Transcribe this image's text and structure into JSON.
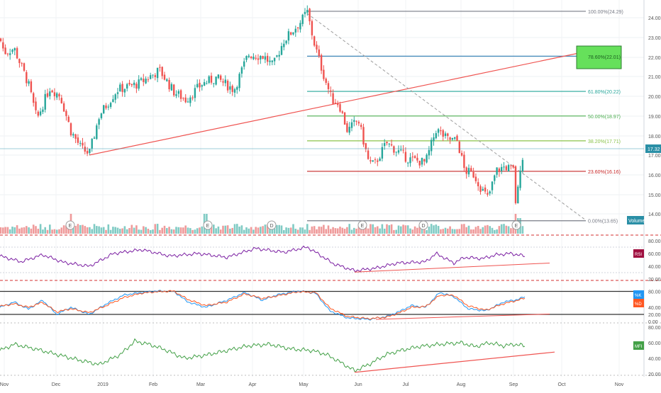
{
  "colors": {
    "up": "#26a69a",
    "down": "#ef5350",
    "fib_gray": "#787b86",
    "fib_blue": "#2a7ab0",
    "fib_teal": "#26a69a",
    "fib_green": "#4caf50",
    "fib_lime": "#8bc34a",
    "fib_red": "#c62828",
    "trend_red": "#ef5350",
    "rsi_line": "#7b1fa2",
    "stoch_k": "#2196f3",
    "stoch_d": "#ff5722",
    "mfi_line": "#43a047",
    "price_badge": "#2a8fa6",
    "green_box": "#66e05b",
    "separator": "#d32f2f"
  },
  "price_axis": {
    "ticks": [
      "24.00",
      "23.00",
      "22.00",
      "21.00",
      "20.00",
      "19.00",
      "18.00",
      "17.00",
      "16.00",
      "15.00",
      "14.00"
    ],
    "current_price": "17.32",
    "volume_label": "Volume"
  },
  "fib_levels": [
    {
      "label": "100.00%(24.29)",
      "price": 24.29,
      "color_key": "fib_gray"
    },
    {
      "label": "78.60%(22.01)",
      "price": 22.01,
      "color_key": "fib_blue"
    },
    {
      "label": "61.80%(20.22)",
      "price": 20.22,
      "color_key": "fib_teal"
    },
    {
      "label": "50.00%(18.97)",
      "price": 18.97,
      "color_key": "fib_green"
    },
    {
      "label": "38.20%(17.71)",
      "price": 17.71,
      "color_key": "fib_lime"
    },
    {
      "label": "23.60%(16.16)",
      "price": 16.16,
      "color_key": "fib_red"
    },
    {
      "label": "0.00%(13.65)",
      "price": 13.65,
      "color_key": "fib_gray"
    }
  ],
  "event_markers": [
    "E",
    "E",
    "D",
    "E",
    "D",
    "E"
  ],
  "indicators": {
    "rsi": {
      "badge": "RSI",
      "ticks": [
        "80.00",
        "60.00",
        "40.00",
        "20.00"
      ]
    },
    "stoch": {
      "badge_k": "%K",
      "badge_d": "%D",
      "ticks": [
        "80.00",
        "40.00",
        "20.00",
        "0.00"
      ]
    },
    "mfi": {
      "badge": "MFI",
      "ticks": [
        "80.00",
        "60.00",
        "40.00",
        "20.00"
      ]
    }
  },
  "time_axis": [
    "Nov",
    "Dec",
    "2019",
    "Feb",
    "Mar",
    "Apr",
    "May",
    "Jun",
    "Jul",
    "Aug",
    "Sep",
    "Oct",
    "Nov"
  ],
  "chart_data": {
    "type": "candlestick",
    "title": "",
    "x_range": [
      "2018-11",
      "2019-11"
    ],
    "ylim": [
      13.4,
      24.7
    ],
    "price_path": [
      [
        0,
        22.9
      ],
      [
        6,
        22.2
      ],
      [
        20,
        22.4
      ],
      [
        40,
        20.6
      ],
      [
        52,
        18.8
      ],
      [
        70,
        20.4
      ],
      [
        85,
        20.0
      ],
      [
        100,
        18.2
      ],
      [
        115,
        17.3
      ],
      [
        126,
        17.05
      ],
      [
        140,
        19.0
      ],
      [
        165,
        20.3
      ],
      [
        195,
        20.6
      ],
      [
        225,
        21.3
      ],
      [
        245,
        20.2
      ],
      [
        262,
        19.8
      ],
      [
        285,
        20.6
      ],
      [
        305,
        20.9
      ],
      [
        330,
        20.3
      ],
      [
        350,
        22.1
      ],
      [
        372,
        22.0
      ],
      [
        385,
        21.5
      ],
      [
        400,
        22.8
      ],
      [
        425,
        23.8
      ],
      [
        433,
        24.29
      ],
      [
        442,
        22.8
      ],
      [
        455,
        21.2
      ],
      [
        468,
        19.8
      ],
      [
        478,
        19.6
      ],
      [
        490,
        18.2
      ],
      [
        505,
        18.8
      ],
      [
        520,
        16.6
      ],
      [
        528,
        16.5
      ],
      [
        545,
        17.6
      ],
      [
        560,
        17.2
      ],
      [
        575,
        16.8
      ],
      [
        600,
        16.6
      ],
      [
        615,
        18.3
      ],
      [
        630,
        17.8
      ],
      [
        645,
        17.7
      ],
      [
        655,
        16.2
      ],
      [
        668,
        16.0
      ],
      [
        680,
        15.2
      ],
      [
        688,
        14.8
      ],
      [
        700,
        16.2
      ],
      [
        712,
        16.4
      ],
      [
        725,
        16.2
      ],
      [
        728,
        13.85
      ],
      [
        732,
        16.2
      ],
      [
        740,
        17.32
      ]
    ],
    "trendline": {
      "from": [
        "2018-12",
        17.0
      ],
      "to": [
        "2019-10",
        22.5
      ]
    },
    "target_zone": {
      "label": "78.60%(22.01)",
      "low": 21.5,
      "high": 22.6
    },
    "indicators": [
      {
        "name": "RSI",
        "ylim": [
          20,
          80
        ],
        "bands": [
          70,
          30
        ],
        "path": [
          [
            0,
            56
          ],
          [
            30,
            47
          ],
          [
            60,
            58
          ],
          [
            90,
            46
          ],
          [
            126,
            40
          ],
          [
            160,
            60
          ],
          [
            200,
            66
          ],
          [
            240,
            56
          ],
          [
            280,
            60
          ],
          [
            320,
            54
          ],
          [
            360,
            68
          ],
          [
            400,
            62
          ],
          [
            433,
            70
          ],
          [
            445,
            62
          ],
          [
            470,
            44
          ],
          [
            500,
            33
          ],
          [
            530,
            37
          ],
          [
            560,
            45
          ],
          [
            600,
            47
          ],
          [
            615,
            60
          ],
          [
            640,
            45
          ],
          [
            655,
            54
          ],
          [
            680,
            52
          ],
          [
            700,
            58
          ],
          [
            720,
            60
          ],
          [
            740,
            56
          ]
        ]
      },
      {
        "name": "Stoch",
        "ylim": [
          0,
          100
        ],
        "bands": [
          80,
          20
        ],
        "k_path": [
          [
            0,
            40
          ],
          [
            20,
            55
          ],
          [
            40,
            35
          ],
          [
            60,
            60
          ],
          [
            80,
            20
          ],
          [
            100,
            40
          ],
          [
            126,
            20
          ],
          [
            150,
            50
          ],
          [
            175,
            75
          ],
          [
            200,
            82
          ],
          [
            220,
            86
          ],
          [
            245,
            85
          ],
          [
            265,
            55
          ],
          [
            290,
            40
          ],
          [
            320,
            60
          ],
          [
            345,
            82
          ],
          [
            370,
            60
          ],
          [
            390,
            75
          ],
          [
            420,
            86
          ],
          [
            445,
            80
          ],
          [
            465,
            30
          ],
          [
            490,
            10
          ],
          [
            520,
            6
          ],
          [
            545,
            14
          ],
          [
            565,
            30
          ],
          [
            580,
            45
          ],
          [
            600,
            40
          ],
          [
            620,
            82
          ],
          [
            640,
            70
          ],
          [
            660,
            36
          ],
          [
            685,
            30
          ],
          [
            710,
            55
          ],
          [
            730,
            62
          ],
          [
            740,
            70
          ]
        ],
        "d_path": [
          [
            0,
            43
          ],
          [
            20,
            50
          ],
          [
            40,
            40
          ],
          [
            60,
            54
          ],
          [
            80,
            27
          ],
          [
            100,
            36
          ],
          [
            126,
            25
          ],
          [
            150,
            45
          ],
          [
            175,
            68
          ],
          [
            200,
            80
          ],
          [
            220,
            84
          ],
          [
            245,
            86
          ],
          [
            265,
            62
          ],
          [
            290,
            45
          ],
          [
            320,
            55
          ],
          [
            345,
            78
          ],
          [
            370,
            65
          ],
          [
            390,
            72
          ],
          [
            420,
            84
          ],
          [
            445,
            82
          ],
          [
            465,
            38
          ],
          [
            490,
            14
          ],
          [
            520,
            8
          ],
          [
            545,
            12
          ],
          [
            565,
            26
          ],
          [
            580,
            40
          ],
          [
            600,
            42
          ],
          [
            620,
            74
          ],
          [
            640,
            74
          ],
          [
            660,
            44
          ],
          [
            685,
            32
          ],
          [
            710,
            50
          ],
          [
            730,
            60
          ],
          [
            740,
            66
          ]
        ]
      },
      {
        "name": "MFI",
        "ylim": [
          20,
          80
        ],
        "bands": [],
        "path": [
          [
            0,
            50
          ],
          [
            20,
            58
          ],
          [
            50,
            52
          ],
          [
            80,
            45
          ],
          [
            110,
            38
          ],
          [
            140,
            32
          ],
          [
            170,
            45
          ],
          [
            190,
            62
          ],
          [
            210,
            58
          ],
          [
            230,
            52
          ],
          [
            260,
            40
          ],
          [
            290,
            44
          ],
          [
            320,
            50
          ],
          [
            350,
            56
          ],
          [
            380,
            58
          ],
          [
            410,
            52
          ],
          [
            440,
            50
          ],
          [
            460,
            45
          ],
          [
            480,
            35
          ],
          [
            500,
            24
          ],
          [
            520,
            32
          ],
          [
            545,
            45
          ],
          [
            565,
            50
          ],
          [
            590,
            55
          ],
          [
            620,
            58
          ],
          [
            650,
            60
          ],
          [
            670,
            55
          ],
          [
            690,
            60
          ],
          [
            710,
            56
          ],
          [
            725,
            58
          ],
          [
            740,
            56
          ]
        ]
      }
    ]
  }
}
